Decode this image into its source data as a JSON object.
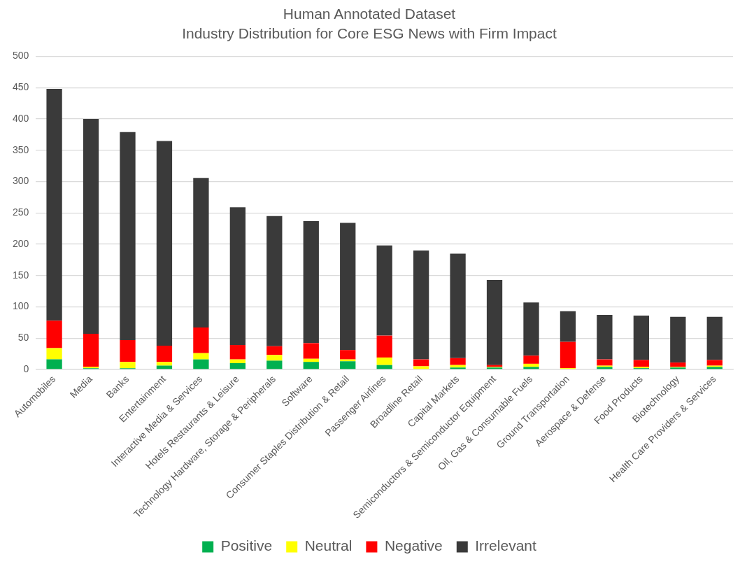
{
  "chart_data": {
    "type": "bar",
    "title": "Human Annotated Dataset",
    "subtitle": "Industry Distribution for Core ESG News with Firm Impact",
    "stacked": true,
    "grid": "y",
    "legend": "bottom",
    "categories": [
      "Automobiles",
      "Media",
      "Banks",
      "Entertainment",
      "Interactive Media & Services",
      "Hotels Restaurants & Leisure",
      "Technology Hardware, Storage & Peripherals",
      "Software",
      "Consumer Staples Distribution & Retail",
      "Passenger Airlines",
      "Broadline Retail",
      "Capital Markets",
      "Semiconductors & Semiconductor Equipment",
      "Oil, Gas & Consumable Fuels",
      "Ground Transportation",
      "Aerospace & Defense",
      "Food Products",
      "Biotechnology",
      "Health Care Providers & Services"
    ],
    "ylim": [
      0,
      500
    ],
    "yticks": [
      0,
      50,
      100,
      150,
      200,
      250,
      300,
      350,
      400,
      450,
      500
    ],
    "series": [
      {
        "name": "Positive",
        "color": "#00b050",
        "values": [
          16,
          2,
          2,
          6,
          16,
          10,
          14,
          12,
          13,
          7,
          0,
          3,
          3,
          4,
          0,
          4,
          2,
          3,
          4
        ]
      },
      {
        "name": "Neutral",
        "color": "#ffff00",
        "values": [
          18,
          2,
          10,
          6,
          10,
          6,
          9,
          5,
          3,
          12,
          5,
          4,
          1,
          5,
          2,
          2,
          2,
          1,
          2
        ]
      },
      {
        "name": "Negative",
        "color": "#ff0000",
        "values": [
          44,
          53,
          35,
          26,
          41,
          23,
          14,
          25,
          15,
          35,
          11,
          11,
          3,
          13,
          42,
          10,
          11,
          7,
          9
        ]
      },
      {
        "name": "Irrelevant",
        "color": "#3a3a3a",
        "values": [
          370,
          343,
          332,
          327,
          239,
          220,
          208,
          195,
          203,
          144,
          174,
          167,
          136,
          85,
          49,
          71,
          71,
          73,
          69
        ]
      }
    ]
  }
}
